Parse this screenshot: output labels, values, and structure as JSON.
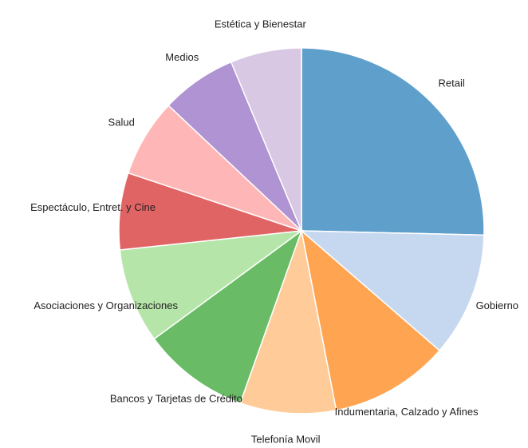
{
  "chart_data": {
    "type": "pie",
    "categories": [
      "Retail",
      "Gobierno",
      "Indumentaria, Calzado y Afines",
      "Telefonía Movil",
      "Bancos y Tarjetas de Crédito",
      "Asociaciones y Organizaciones",
      "Espectáculo, Entret. y Cine",
      "Salud",
      "Medios",
      "Estética y Bienestar"
    ],
    "values": [
      25.4,
      11,
      10.6,
      8.5,
      9.5,
      8.4,
      6.8,
      6.9,
      6.7,
      6.3
    ],
    "colors": [
      "#5f9fcb",
      "#c6d8f0",
      "#ffa552",
      "#ffcc99",
      "#69bb66",
      "#b5e5a9",
      "#e06464",
      "#ffb6b6",
      "#b093d3",
      "#d8c8e3"
    ]
  }
}
